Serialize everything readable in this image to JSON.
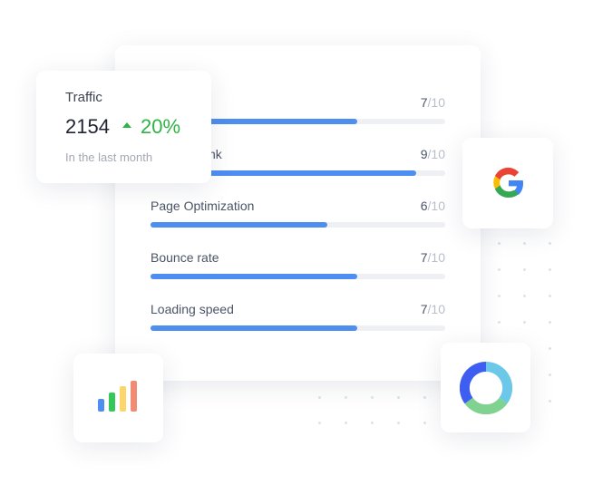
{
  "traffic": {
    "title": "Traffic",
    "value": 2154,
    "change": {
      "value": 20,
      "label": "20%"
    },
    "period": "In the last month"
  },
  "metrics": {
    "out_of": {
      "value": 10,
      "label": "/10"
    },
    "rows": [
      {
        "label": null,
        "score": 7
      },
      {
        "label": "nk",
        "score": 9
      },
      {
        "label": "Page Optimization",
        "score": 6
      },
      {
        "label": "Bounce rate",
        "score": 7
      },
      {
        "label": "Loading speed",
        "score": 7
      }
    ]
  }
}
